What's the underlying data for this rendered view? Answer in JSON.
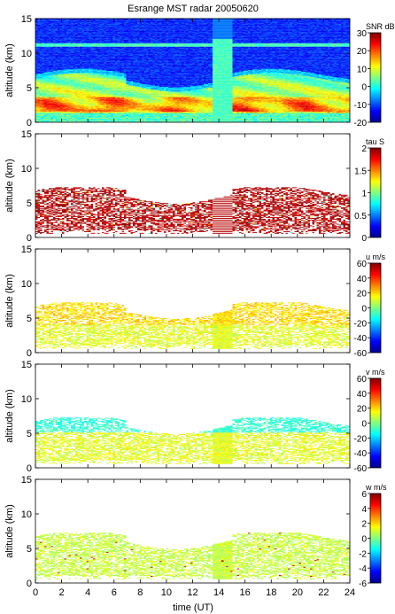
{
  "chart_data": {
    "type": "heatmap",
    "title": "Esrange MST radar 20050620",
    "xlabel": "time (UT)",
    "xlim": [
      0,
      24
    ],
    "x_ticks": [
      "0",
      "2",
      "4",
      "6",
      "8",
      "10",
      "12",
      "14",
      "16",
      "18",
      "20",
      "22",
      "24"
    ],
    "panels": [
      {
        "id": "snr",
        "ylabel": "altitude (km)",
        "ylim": [
          0,
          15
        ],
        "y_ticks": [
          "0",
          "5",
          "10",
          "15"
        ],
        "colorbar": {
          "label": "SNR dB",
          "range": [
            -20,
            30
          ],
          "ticks": [
            "-20",
            "-10",
            "0",
            "10",
            "20",
            "30"
          ]
        }
      },
      {
        "id": "tau",
        "ylabel": "altitude (km)",
        "ylim": [
          0,
          15
        ],
        "y_ticks": [
          "0",
          "5",
          "10",
          "15"
        ],
        "colorbar": {
          "label": "tau S",
          "range": [
            0,
            2
          ],
          "ticks": [
            "0",
            "0.5",
            "1",
            "1.5",
            "2"
          ]
        }
      },
      {
        "id": "u",
        "ylabel": "altitude (km)",
        "ylim": [
          0,
          15
        ],
        "y_ticks": [
          "0",
          "5",
          "10",
          "15"
        ],
        "colorbar": {
          "label": "u m/s",
          "range": [
            -60,
            60
          ],
          "ticks": [
            "-60",
            "-40",
            "-20",
            "0",
            "20",
            "40",
            "60"
          ]
        }
      },
      {
        "id": "v",
        "ylabel": "altitude (km)",
        "ylim": [
          0,
          15
        ],
        "y_ticks": [
          "0",
          "5",
          "10",
          "15"
        ],
        "colorbar": {
          "label": "v m/s",
          "range": [
            -60,
            60
          ],
          "ticks": [
            "-60",
            "-40",
            "-20",
            "0",
            "20",
            "40",
            "60"
          ]
        }
      },
      {
        "id": "w",
        "ylabel": "altitude (km)",
        "ylim": [
          0,
          15
        ],
        "y_ticks": [
          "0",
          "5",
          "10",
          "15"
        ],
        "colorbar": {
          "label": "w m/s",
          "range": [
            -6,
            6
          ],
          "ticks": [
            "-6",
            "-4",
            "-2",
            "0",
            "2",
            "4",
            "6"
          ]
        }
      }
    ]
  }
}
